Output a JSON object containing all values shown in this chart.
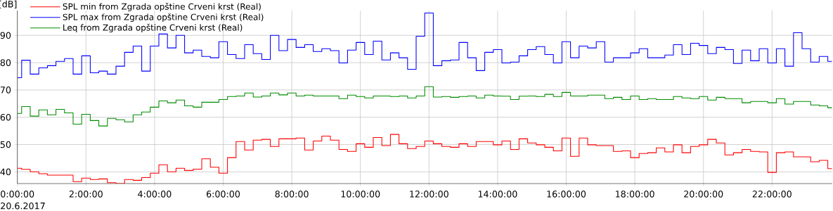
{
  "chart_data": {
    "type": "step",
    "ylabel": "[dB]",
    "annotations": [
      "20.6.2017"
    ],
    "x": [
      0,
      0.25,
      0.5,
      0.75,
      1,
      1.25,
      1.5,
      1.75,
      2,
      2.25,
      2.5,
      2.75,
      3,
      3.25,
      3.5,
      3.75,
      4,
      4.25,
      4.5,
      4.75,
      5,
      5.25,
      5.5,
      5.75,
      6,
      6.25,
      6.5,
      6.75,
      7,
      7.25,
      7.5,
      7.75,
      8,
      8.25,
      8.5,
      8.75,
      9,
      9.25,
      9.5,
      9.75,
      10,
      10.25,
      10.5,
      10.75,
      11,
      11.25,
      11.5,
      11.75,
      12,
      12.25,
      12.5,
      12.75,
      13,
      13.25,
      13.5,
      13.75,
      14,
      14.25,
      14.5,
      14.75,
      15,
      15.25,
      15.5,
      15.75,
      16,
      16.25,
      16.5,
      16.75,
      17,
      17.25,
      17.5,
      17.75,
      18,
      18.25,
      18.5,
      18.75,
      19,
      19.25,
      19.5,
      19.75,
      20,
      20.25,
      20.5,
      20.75,
      21,
      21.25,
      21.5,
      21.75,
      22,
      22.25,
      22.5,
      22.75,
      23,
      23.25,
      23.5,
      23.75
    ],
    "series": [
      {
        "name": "SPL min from Zgrada opštine Crveni krst (Real)",
        "color": "#ff0000",
        "values": [
          41.3,
          40.9,
          40.0,
          39.3,
          38.8,
          38.8,
          38.8,
          36.4,
          37.7,
          37.2,
          37.4,
          36.0,
          35.7,
          37.2,
          36.9,
          37.9,
          39.5,
          42.6,
          40.0,
          41.3,
          40.5,
          41.0,
          44.8,
          41.7,
          39.5,
          45.2,
          51.1,
          48.0,
          51.6,
          51.9,
          49.3,
          52.1,
          52.1,
          52.4,
          48.0,
          51.3,
          53.1,
          51.6,
          48.2,
          47.5,
          50.3,
          49.0,
          52.6,
          49.6,
          53.7,
          50.3,
          48.5,
          49.3,
          51.3,
          50.3,
          49.3,
          49.0,
          50.3,
          49.3,
          51.1,
          51.1,
          49.9,
          51.3,
          48.2,
          52.1,
          50.6,
          49.9,
          49.0,
          47.7,
          52.4,
          45.7,
          52.4,
          49.9,
          49.6,
          49.6,
          47.5,
          47.7,
          45.2,
          46.7,
          47.0,
          48.8,
          47.3,
          49.9,
          47.0,
          49.3,
          49.9,
          51.9,
          50.6,
          46.2,
          47.0,
          48.2,
          47.5,
          47.3,
          39.8,
          47.0,
          47.3,
          45.5,
          45.5,
          43.7,
          44.2,
          41.2
        ]
      },
      {
        "name": "SPL max from Zgrada opštine Crveni krst (Real)",
        "color": "#0000ff",
        "values": [
          74.5,
          80.9,
          75.8,
          78.1,
          78.9,
          80.5,
          81.5,
          75.8,
          82.5,
          76.3,
          76.9,
          75.8,
          78.7,
          83.8,
          86.1,
          76.9,
          86.1,
          90.5,
          85.4,
          90.0,
          83.6,
          84.6,
          82.3,
          81.8,
          87.7,
          83.0,
          81.5,
          86.6,
          83.3,
          81.2,
          90.0,
          84.4,
          88.5,
          85.6,
          86.6,
          84.1,
          85.1,
          84.4,
          79.9,
          84.6,
          87.4,
          83.0,
          87.9,
          81.0,
          83.6,
          81.8,
          77.6,
          89.7,
          98.2,
          78.9,
          80.7,
          81.0,
          87.4,
          81.8,
          77.1,
          83.8,
          84.8,
          79.9,
          80.2,
          82.5,
          84.8,
          85.9,
          83.0,
          79.9,
          87.7,
          81.8,
          86.1,
          85.4,
          87.7,
          80.2,
          81.8,
          81.8,
          83.6,
          85.1,
          81.8,
          81.8,
          82.8,
          86.6,
          83.0,
          87.1,
          86.3,
          83.3,
          85.6,
          84.8,
          79.7,
          84.6,
          80.7,
          85.1,
          79.9,
          85.1,
          78.7,
          91.0,
          85.1,
          80.2,
          82.3,
          80.5
        ]
      },
      {
        "name": "Leq from Zgrada opštine Crveni krst (Real)",
        "color": "#008c00",
        "values": [
          61.4,
          63.9,
          60.4,
          62.7,
          60.9,
          62.9,
          61.6,
          57.5,
          61.1,
          58.8,
          56.8,
          59.6,
          59.1,
          58.3,
          60.9,
          61.9,
          63.7,
          66.0,
          65.3,
          66.3,
          64.2,
          63.7,
          65.5,
          65.5,
          66.5,
          67.6,
          67.8,
          68.9,
          67.4,
          67.8,
          68.9,
          68.2,
          68.9,
          67.8,
          68.1,
          67.8,
          67.8,
          67.8,
          66.8,
          68.1,
          67.6,
          67.1,
          67.8,
          67.8,
          67.6,
          67.8,
          67.1,
          67.8,
          71.2,
          67.4,
          67.6,
          67.3,
          67.6,
          67.8,
          67.1,
          68.1,
          67.8,
          67.7,
          66.5,
          67.7,
          67.8,
          67.6,
          68.4,
          67.6,
          69.1,
          67.8,
          67.8,
          68.1,
          68.1,
          66.8,
          67.3,
          66.5,
          67.8,
          66.5,
          66.8,
          66.5,
          66.5,
          67.6,
          67.1,
          66.8,
          67.6,
          66.3,
          67.3,
          66.8,
          66.8,
          65.3,
          65.8,
          65.8,
          65.3,
          66.8,
          64.8,
          65.8,
          65.8,
          64.5,
          64.2,
          63.5
        ]
      }
    ],
    "xlim": [
      0,
      23.75
    ],
    "ylim": [
      35.7,
      99.1
    ],
    "xticks": [
      {
        "value": 0,
        "label": "0:00:00"
      },
      {
        "value": 2,
        "label": "2:00:00"
      },
      {
        "value": 4,
        "label": "4:00:00"
      },
      {
        "value": 6,
        "label": "6:00:00"
      },
      {
        "value": 8,
        "label": "8:00:00"
      },
      {
        "value": 10,
        "label": "10:00:00"
      },
      {
        "value": 12,
        "label": "12:00:00"
      },
      {
        "value": 14,
        "label": "14:00:00"
      },
      {
        "value": 16,
        "label": "16:00:00"
      },
      {
        "value": 18,
        "label": "18:00:00"
      },
      {
        "value": 20,
        "label": "20:00:00"
      },
      {
        "value": 22,
        "label": "22:00:00"
      }
    ],
    "yticks": [
      40,
      50,
      60,
      70,
      80,
      90
    ],
    "grid": true,
    "legend": "top left"
  }
}
